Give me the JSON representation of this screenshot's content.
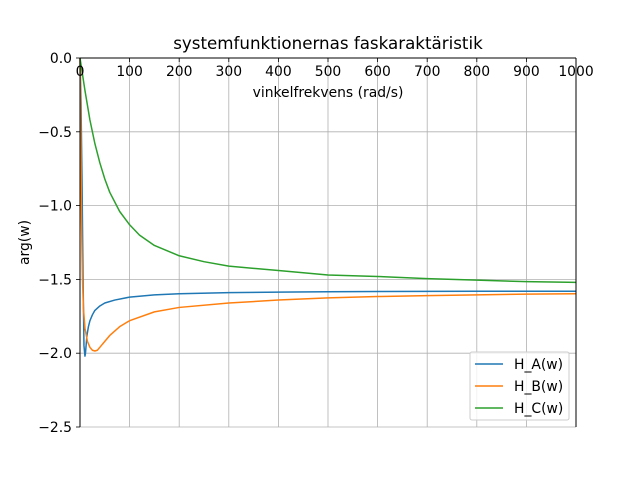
{
  "chart_data": {
    "type": "line",
    "title": "systemfunktionernas faskaraktäristik",
    "xlabel": "vinkelfrekvens (rad/s)",
    "ylabel": "arg(w)",
    "xlim": [
      0,
      1000
    ],
    "ylim": [
      -2.5,
      0.0
    ],
    "xticks": [
      0,
      100,
      200,
      300,
      400,
      500,
      600,
      700,
      800,
      900,
      1000
    ],
    "xtick_labels": [
      "0",
      "100",
      "200",
      "300",
      "400",
      "500",
      "600",
      "700",
      "800",
      "900",
      "1000"
    ],
    "yticks": [
      0.0,
      -0.5,
      -1.0,
      -1.5,
      -2.0,
      -2.5
    ],
    "ytick_labels": [
      "0.0",
      "−0.5",
      "−1.0",
      "−1.5",
      "−2.0",
      "−2.5"
    ],
    "grid": true,
    "legend_position": "lower right",
    "series": [
      {
        "name": "H_A(w)",
        "color": "#1f77b4",
        "x": [
          0,
          2,
          4,
          6,
          8,
          10,
          11,
          12,
          14,
          17,
          20,
          25,
          30,
          40,
          50,
          70,
          100,
          150,
          200,
          300,
          400,
          500,
          600,
          700,
          800,
          900,
          1000
        ],
        "y": [
          0,
          -0.3,
          -0.8,
          -1.45,
          -1.95,
          -2.02,
          -2.0,
          -1.96,
          -1.88,
          -1.82,
          -1.78,
          -1.74,
          -1.71,
          -1.68,
          -1.66,
          -1.64,
          -1.62,
          -1.605,
          -1.597,
          -1.59,
          -1.586,
          -1.584,
          -1.582,
          -1.581,
          -1.58,
          -1.58,
          -1.58
        ]
      },
      {
        "name": "H_B(w)",
        "color": "#ff7f0e",
        "x": [
          0,
          1,
          2,
          3,
          5,
          7,
          10,
          15,
          20,
          25,
          30,
          35,
          40,
          50,
          60,
          80,
          100,
          150,
          200,
          300,
          400,
          500,
          600,
          700,
          800,
          900,
          1000
        ],
        "y": [
          0,
          -0.3,
          -0.7,
          -1.1,
          -1.5,
          -1.7,
          -1.83,
          -1.92,
          -1.96,
          -1.98,
          -1.985,
          -1.98,
          -1.96,
          -1.92,
          -1.88,
          -1.82,
          -1.78,
          -1.72,
          -1.69,
          -1.66,
          -1.64,
          -1.625,
          -1.616,
          -1.61,
          -1.605,
          -1.6,
          -1.597
        ]
      },
      {
        "name": "H_C(w)",
        "color": "#2ca02c",
        "x": [
          0,
          5,
          10,
          20,
          30,
          40,
          50,
          60,
          80,
          100,
          120,
          150,
          200,
          250,
          300,
          400,
          500,
          600,
          700,
          800,
          900,
          1000
        ],
        "y": [
          0,
          -0.11,
          -0.22,
          -0.42,
          -0.58,
          -0.71,
          -0.82,
          -0.91,
          -1.04,
          -1.13,
          -1.2,
          -1.27,
          -1.34,
          -1.38,
          -1.41,
          -1.44,
          -1.47,
          -1.48,
          -1.495,
          -1.505,
          -1.515,
          -1.52
        ]
      }
    ]
  }
}
